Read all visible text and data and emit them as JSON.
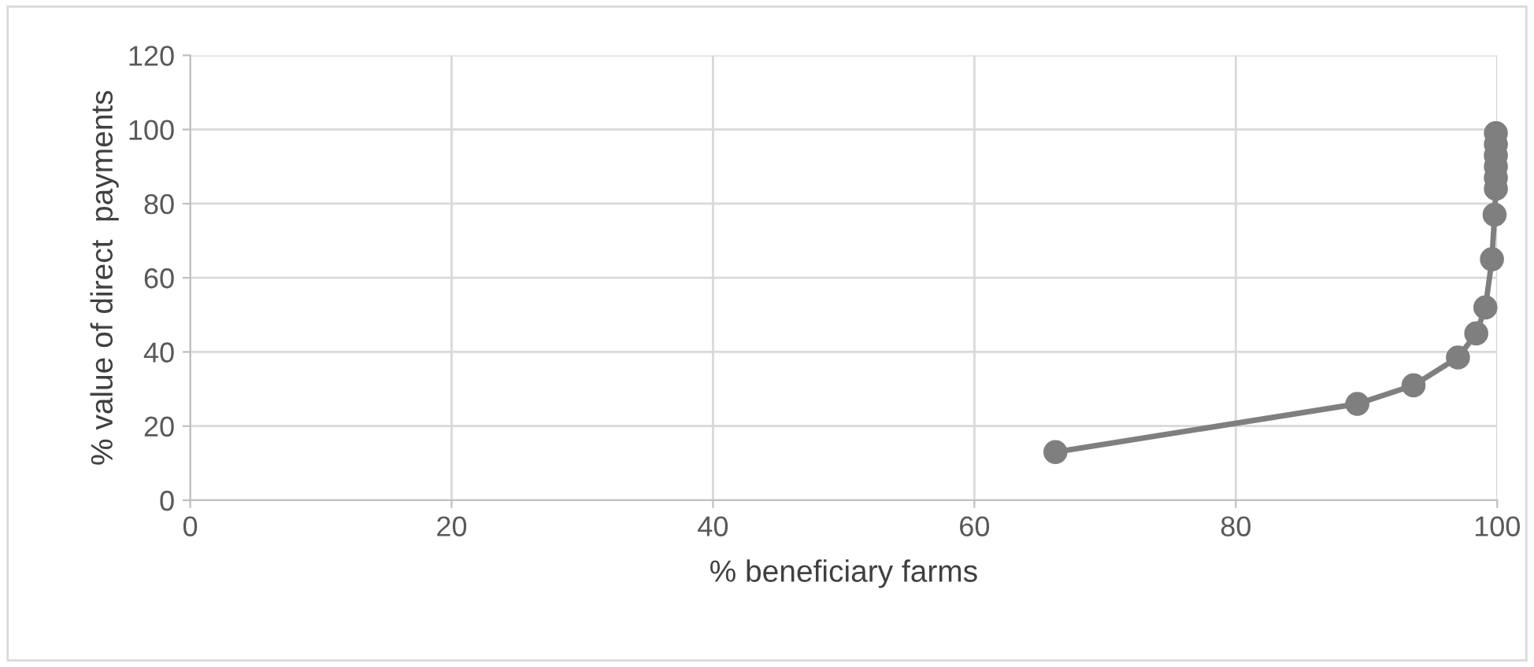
{
  "chart_data": {
    "type": "line",
    "xlabel": "% beneficiary farms",
    "ylabel": "% value of direct  payments",
    "series": [
      {
        "color": "#7f7f7f",
        "x": [
          66.2,
          89.3,
          93.6,
          97,
          98.4,
          99.1,
          99.6,
          99.8,
          99.9,
          99.9,
          99.9,
          99.9,
          99.9,
          99.9
        ],
        "values": [
          13,
          26,
          31,
          38.5,
          45,
          52,
          65,
          77,
          84,
          87,
          90,
          93,
          96,
          99
        ]
      }
    ],
    "xlim": [
      0,
      100
    ],
    "xticks": [
      0,
      20,
      40,
      60,
      80,
      100
    ],
    "ylim": [
      0,
      120
    ],
    "yticks": [
      0,
      20,
      40,
      60,
      80,
      100,
      120
    ],
    "grid": true,
    "marker": "circle",
    "line_style": "solid",
    "legend": false
  }
}
